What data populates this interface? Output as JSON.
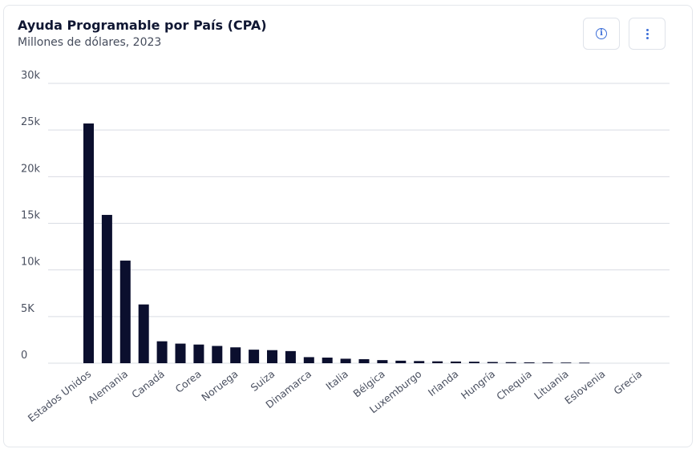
{
  "header": {
    "title": "Ayuda Programable por País (CPA)",
    "subtitle": "Millones de dólares, 2023"
  },
  "icons": {
    "info": "info-icon",
    "more": "more-vertical-icon"
  },
  "colors": {
    "bar": "#0b0f2e",
    "grid": "#d9dce3",
    "axis_text": "#4a5060",
    "accent": "#3d6fd8"
  },
  "chart_data": {
    "type": "bar",
    "title": "Ayuda Programable por País (CPA)",
    "subtitle": "Millones de dólares, 2023",
    "xlabel": "",
    "ylabel": "",
    "ylim": [
      0,
      30000
    ],
    "grid": true,
    "yticks": [
      {
        "value": 0,
        "label": "0"
      },
      {
        "value": 5000,
        "label": "5K"
      },
      {
        "value": 10000,
        "label": "10k"
      },
      {
        "value": 15000,
        "label": "15k"
      },
      {
        "value": 20000,
        "label": "20k"
      },
      {
        "value": 25000,
        "label": "25k"
      },
      {
        "value": 30000,
        "label": "30k"
      }
    ],
    "categories": [
      "Estados Unidos",
      "",
      "Alemania",
      "",
      "Canadá",
      "",
      "Corea",
      "",
      "Noruega",
      "",
      "Suiza",
      "",
      "Dinamarca",
      "",
      "Italia",
      "",
      "Bélgica",
      "",
      "Luxemburgo",
      "",
      "Irlanda",
      "",
      "Hungría",
      "",
      "Chequia",
      "",
      "Lituania",
      "",
      "Eslovenia",
      "",
      "Grecia"
    ],
    "values": [
      25700,
      15900,
      11000,
      6300,
      2350,
      2100,
      2000,
      1850,
      1700,
      1450,
      1400,
      1300,
      650,
      600,
      480,
      430,
      330,
      270,
      230,
      200,
      180,
      160,
      130,
      110,
      90,
      80,
      70,
      55,
      0,
      0,
      0
    ]
  }
}
